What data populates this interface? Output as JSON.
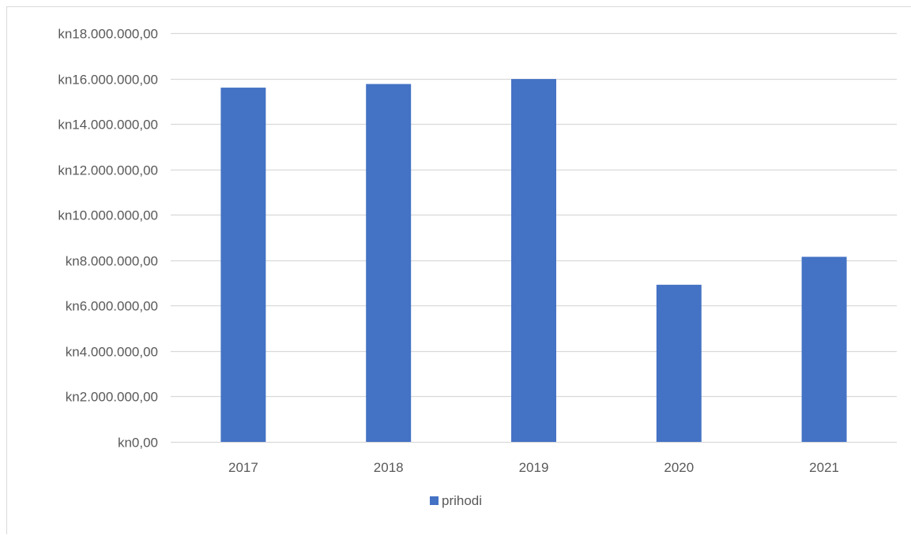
{
  "chart_data": {
    "type": "bar",
    "categories": [
      "2017",
      "2018",
      "2019",
      "2020",
      "2021"
    ],
    "series": [
      {
        "name": "prihodi",
        "color": "#4472c4",
        "values": [
          15600000,
          15760000,
          15980000,
          6920000,
          8150000
        ]
      }
    ],
    "ylim": [
      0,
      18000000
    ],
    "ytick_values": [
      0,
      2000000,
      4000000,
      6000000,
      8000000,
      10000000,
      12000000,
      14000000,
      16000000,
      18000000
    ],
    "ytick_labels": [
      "kn0,00",
      "kn2.000.000,00",
      "kn4.000.000,00",
      "kn6.000.000,00",
      "kn8.000.000,00",
      "kn10.000.000,00",
      "kn12.000.000,00",
      "kn14.000.000,00",
      "kn16.000.000,00",
      "kn18.000.000,00"
    ],
    "title": "",
    "xlabel": "",
    "ylabel": "",
    "grid": true,
    "legend_position": "bottom"
  },
  "colors": {
    "gridline": "#d9d9d9",
    "tick_text": "#595959",
    "bar": "#4472c4"
  }
}
